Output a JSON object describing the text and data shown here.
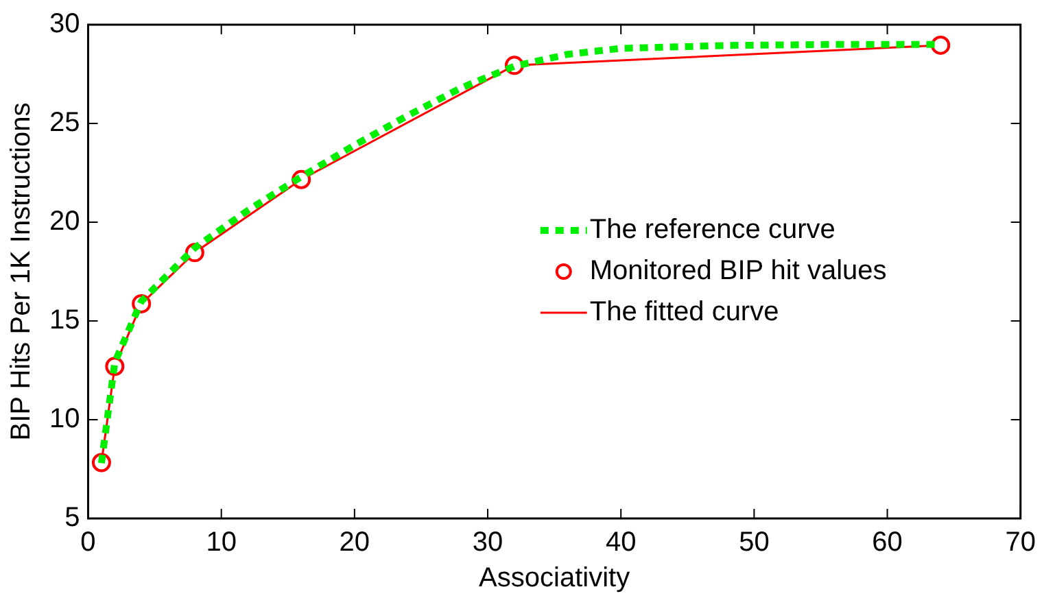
{
  "chart_data": {
    "type": "line",
    "xlabel": "Associativity",
    "ylabel": "BIP Hits Per 1K Instructions",
    "xlim": [
      0,
      70
    ],
    "xticks": [
      0,
      10,
      20,
      30,
      40,
      50,
      60,
      70
    ],
    "ylim": [
      5,
      30
    ],
    "yticks": [
      5,
      10,
      15,
      20,
      25,
      30
    ],
    "grid": false,
    "legend": "right",
    "series": [
      {
        "name": "The reference curve",
        "type": "line",
        "line_style": "dotted",
        "marker": "none",
        "color": "#00ee00",
        "x": [
          1,
          2,
          4,
          8,
          12,
          16,
          20,
          24,
          28,
          32,
          36,
          40,
          48,
          56,
          64
        ],
        "values": [
          7.8,
          12.9,
          16.0,
          18.7,
          20.6,
          22.3,
          23.9,
          25.4,
          26.8,
          27.9,
          28.5,
          28.8,
          28.95,
          29.0,
          29.0
        ]
      },
      {
        "name": "Monitored BIP hit values",
        "type": "scatter",
        "marker": "circle",
        "color": "#ff0000",
        "x": [
          1,
          2,
          4,
          8,
          16,
          32,
          64
        ],
        "values": [
          7.83,
          12.7,
          15.87,
          18.46,
          22.16,
          27.94,
          28.96
        ]
      },
      {
        "name": "The fitted curve",
        "line_style": "solid",
        "marker": "none",
        "color": "#ff0000",
        "x": [
          1,
          2,
          4,
          8,
          16,
          32,
          64
        ],
        "values": [
          7.83,
          12.7,
          15.87,
          18.46,
          22.16,
          27.94,
          28.96
        ]
      }
    ]
  }
}
